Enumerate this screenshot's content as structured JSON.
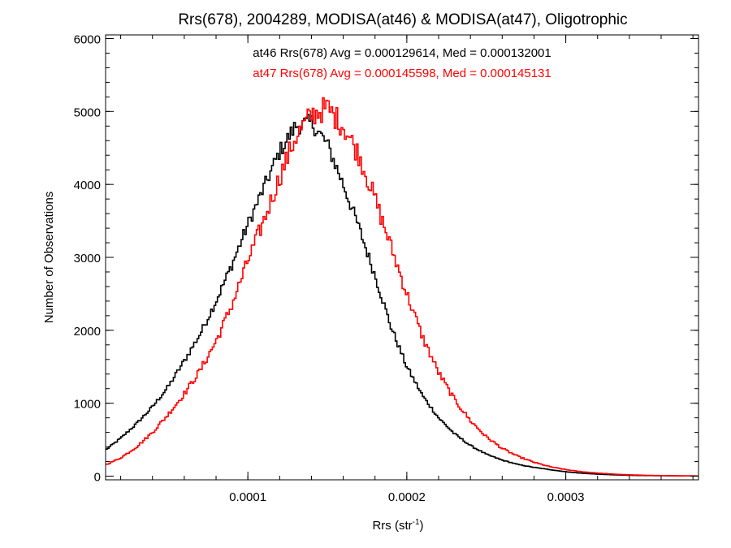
{
  "chart_data": {
    "type": "line",
    "title": "Rrs(678), 2004289, MODISA(at46) & MODISA(at47), Oligotrophic",
    "xlabel": "Rrs (str",
    "xlabel_sup": "-1",
    "xlabel_end": ")",
    "ylabel": "Number of Observations",
    "xlim": [
      1.05e-05,
      0.0003835
    ],
    "ylim": [
      -50,
      6050
    ],
    "x_ticks": [
      0.0001,
      0.0002,
      0.0003
    ],
    "x_tick_labels": [
      "0.0001",
      "0.0002",
      "0.0003"
    ],
    "y_ticks": [
      0,
      1000,
      2000,
      3000,
      4000,
      5000,
      6000
    ],
    "y_tick_labels": [
      "0",
      "1000",
      "2000",
      "3000",
      "4000",
      "5000",
      "6000"
    ],
    "annotations": [
      "at46 Rrs(678) Avg = 0.000129614, Med = 0.000132001",
      "at47 Rrs(678) Avg = 0.000145598, Med = 0.000145131"
    ],
    "series": [
      {
        "color": "#000000",
        "x": [
          1e-05,
          2e-05,
          3e-05,
          4e-05,
          5e-05,
          6e-05,
          7e-05,
          8e-05,
          9e-05,
          0.0001,
          0.00011,
          0.00012,
          0.00013,
          0.00014,
          0.00015,
          0.00016,
          0.00017,
          0.00018,
          0.00019,
          0.0002,
          0.00021,
          0.00022,
          0.00023,
          0.00024,
          0.00025,
          0.00026,
          0.00027,
          0.00028,
          0.00029,
          0.0003,
          0.00031,
          0.00032,
          0.00033,
          0.00034,
          0.00035,
          0.00036,
          0.00037,
          0.00038
        ],
        "y": [
          350,
          520,
          720,
          950,
          1230,
          1580,
          1950,
          2400,
          2900,
          3450,
          3950,
          4450,
          4800,
          4850,
          4550,
          4000,
          3400,
          2750,
          2050,
          1500,
          1100,
          800,
          580,
          420,
          300,
          220,
          160,
          120,
          90,
          60,
          40,
          28,
          18,
          12,
          8,
          6,
          4,
          3
        ]
      },
      {
        "color": "#ff0000",
        "x": [
          1e-05,
          2e-05,
          3e-05,
          4e-05,
          5e-05,
          6e-05,
          7e-05,
          8e-05,
          9e-05,
          0.0001,
          0.00011,
          0.00012,
          0.00013,
          0.00014,
          0.00015,
          0.00016,
          0.00017,
          0.00018,
          0.00019,
          0.0002,
          0.00021,
          0.00022,
          0.00023,
          0.00024,
          0.00025,
          0.00026,
          0.00027,
          0.00028,
          0.00029,
          0.0003,
          0.00031,
          0.00032,
          0.00033,
          0.00034,
          0.00035,
          0.00036,
          0.00037,
          0.00038
        ],
        "y": [
          150,
          250,
          400,
          600,
          850,
          1130,
          1450,
          1850,
          2350,
          2950,
          3500,
          4100,
          4650,
          4950,
          5050,
          4800,
          4400,
          3800,
          3150,
          2500,
          1900,
          1420,
          1050,
          760,
          540,
          380,
          270,
          190,
          130,
          90,
          60,
          42,
          28,
          18,
          12,
          8,
          5,
          3
        ]
      }
    ]
  }
}
